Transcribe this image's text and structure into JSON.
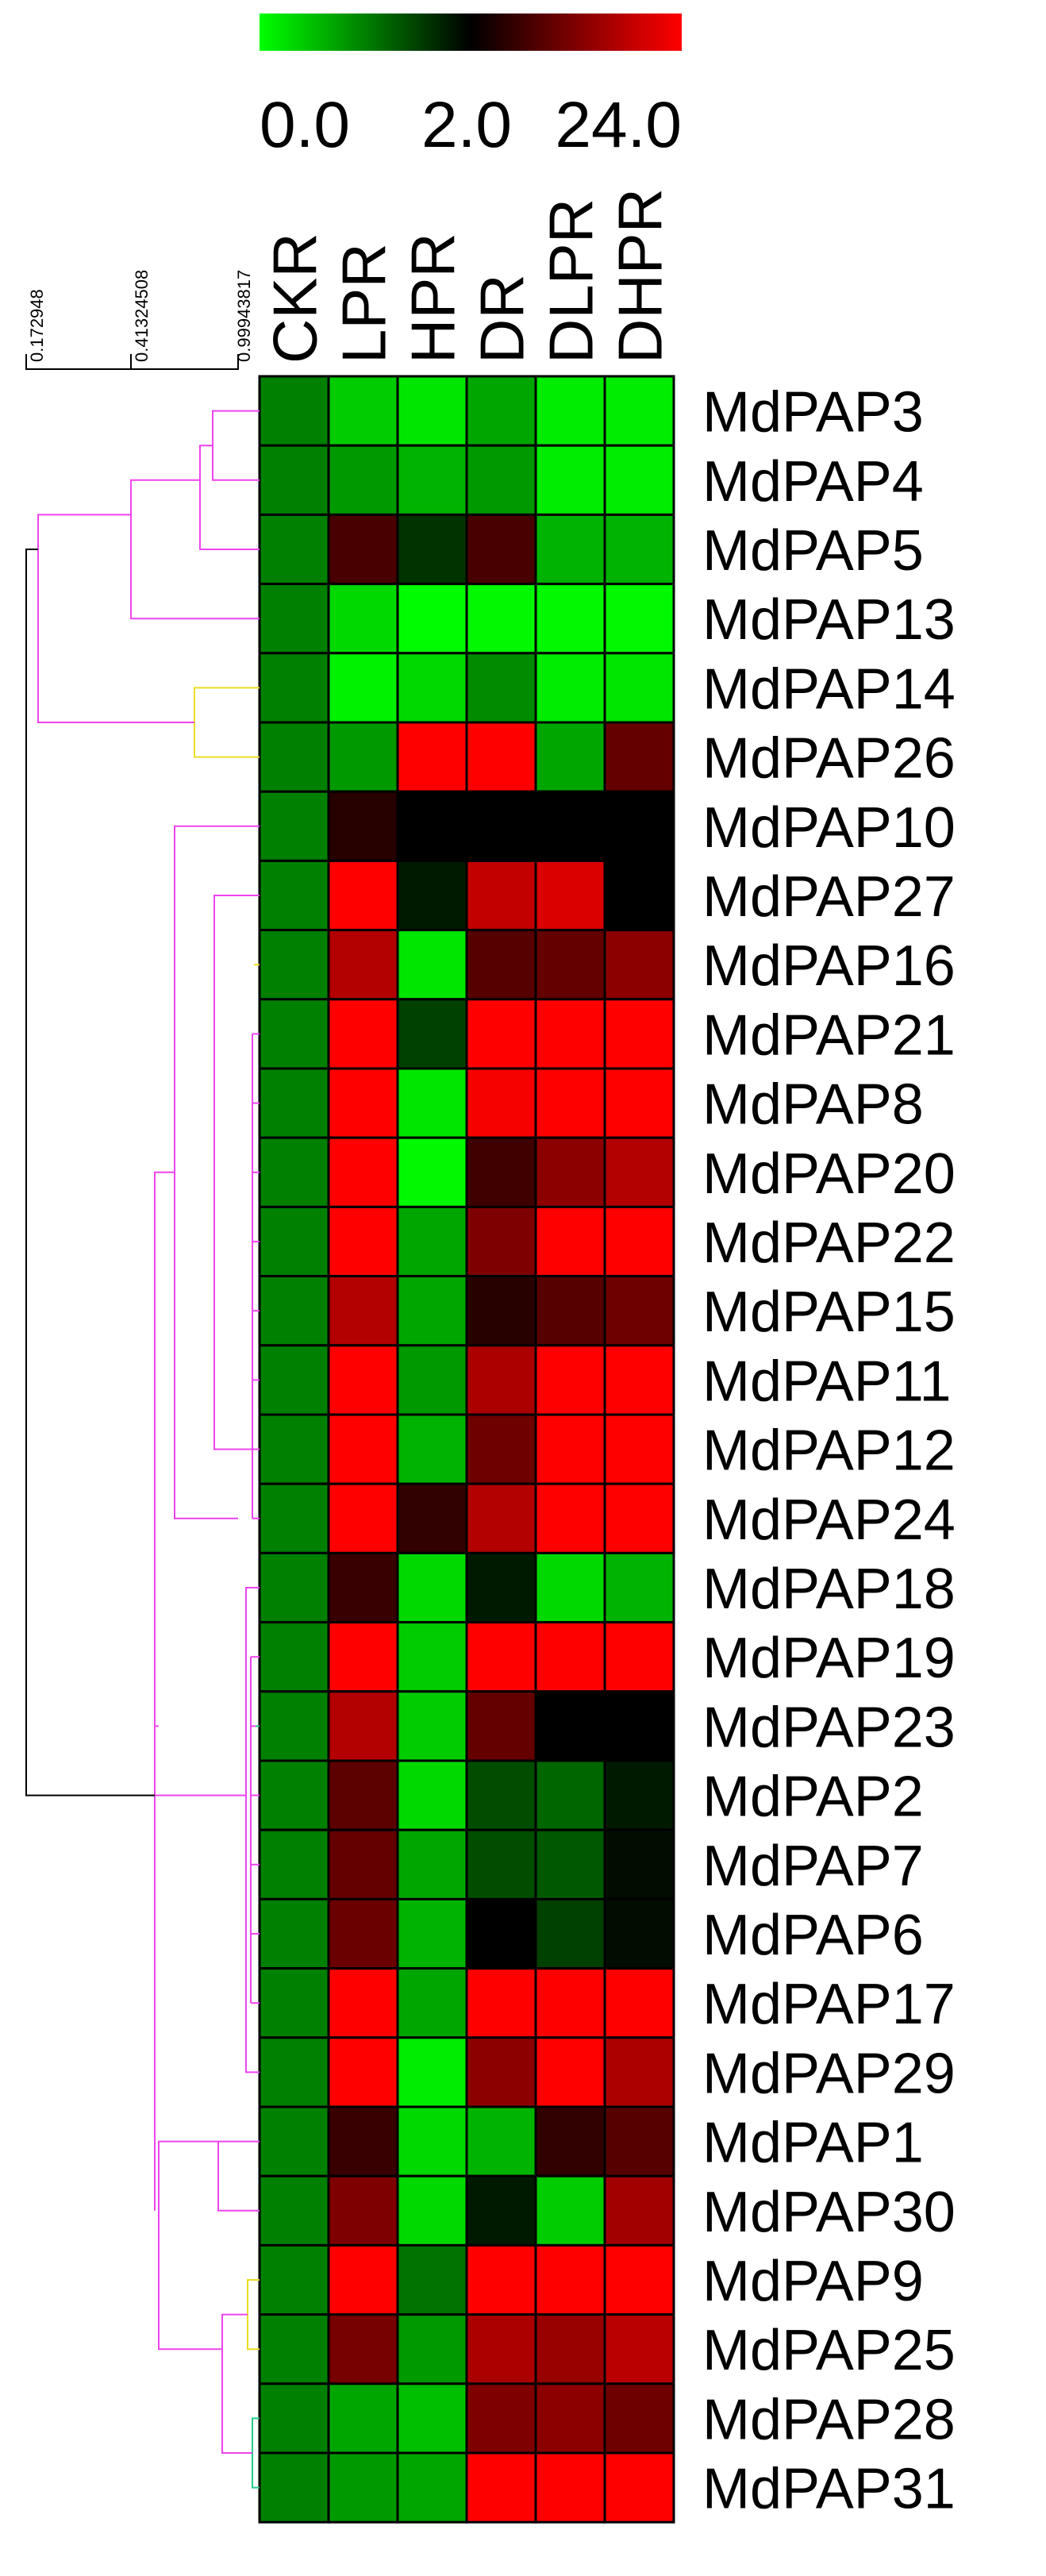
{
  "chart_data": {
    "type": "heatmap",
    "columns": [
      "CKR",
      "LPR",
      "HPR",
      "DR",
      "DLPR",
      "DHPR"
    ],
    "rows": [
      "MdPAP3",
      "MdPAP4",
      "MdPAP5",
      "MdPAP13",
      "MdPAP14",
      "MdPAP26",
      "MdPAP10",
      "MdPAP27",
      "MdPAP16",
      "MdPAP21",
      "MdPAP8",
      "MdPAP20",
      "MdPAP22",
      "MdPAP15",
      "MdPAP11",
      "MdPAP12",
      "MdPAP24",
      "MdPAP18",
      "MdPAP19",
      "MdPAP23",
      "MdPAP2",
      "MdPAP7",
      "MdPAP6",
      "MdPAP17",
      "MdPAP29",
      "MdPAP1",
      "MdPAP30",
      "MdPAP9",
      "MdPAP25",
      "MdPAP28",
      "MdPAP31"
    ],
    "values": [
      [
        1.0,
        0.4,
        0.2,
        0.7,
        0.15,
        0.15
      ],
      [
        1.0,
        0.8,
        0.6,
        0.8,
        0.15,
        0.15
      ],
      [
        1.0,
        2.6,
        1.6,
        2.6,
        0.6,
        0.6
      ],
      [
        1.0,
        0.3,
        0.02,
        0.05,
        0.05,
        0.05
      ],
      [
        1.0,
        0.1,
        0.3,
        0.9,
        0.15,
        0.2
      ],
      [
        1.0,
        0.8,
        24.0,
        24.0,
        0.7,
        3.5
      ],
      [
        1.0,
        2.1,
        2.0,
        2.0,
        2.0,
        2.0
      ],
      [
        1.0,
        24.0,
        1.8,
        12.0,
        16.0,
        2.0
      ],
      [
        1.0,
        10.0,
        0.2,
        3.0,
        3.5,
        6.0
      ],
      [
        1.0,
        24.0,
        1.5,
        24.0,
        24.0,
        24.0
      ],
      [
        1.0,
        24.0,
        0.2,
        22.0,
        24.0,
        24.0
      ],
      [
        1.0,
        24.0,
        0.05,
        2.4,
        6.0,
        10.0
      ],
      [
        1.0,
        24.0,
        0.7,
        5.0,
        24.0,
        24.0
      ],
      [
        1.0,
        10.0,
        0.7,
        2.1,
        3.0,
        4.0
      ],
      [
        1.0,
        24.0,
        0.8,
        9.0,
        24.0,
        24.0
      ],
      [
        1.0,
        24.0,
        0.6,
        4.0,
        24.0,
        24.0
      ],
      [
        1.0,
        24.0,
        2.2,
        10.0,
        24.0,
        24.0
      ],
      [
        1.0,
        2.3,
        0.3,
        1.8,
        0.3,
        0.6
      ],
      [
        1.0,
        24.0,
        0.4,
        24.0,
        24.0,
        24.0
      ],
      [
        1.0,
        10.0,
        0.4,
        3.5,
        2.0,
        2.0
      ],
      [
        1.0,
        3.2,
        0.3,
        1.4,
        1.2,
        1.8
      ],
      [
        1.0,
        3.5,
        0.7,
        1.4,
        1.3,
        1.9
      ],
      [
        1.0,
        3.8,
        0.6,
        2.0,
        1.5,
        1.9
      ],
      [
        1.0,
        24.0,
        0.7,
        24.0,
        24.0,
        24.0
      ],
      [
        1.0,
        24.0,
        0.15,
        6.0,
        24.0,
        9.0
      ],
      [
        1.0,
        2.3,
        0.3,
        0.6,
        2.2,
        3.0
      ],
      [
        1.0,
        5.0,
        0.3,
        1.8,
        0.4,
        8.0
      ],
      [
        1.0,
        24.0,
        1.1,
        24.0,
        24.0,
        24.0
      ],
      [
        1.0,
        4.5,
        0.8,
        9.0,
        7.0,
        11.0
      ],
      [
        1.0,
        0.7,
        0.5,
        5.0,
        6.0,
        4.0
      ],
      [
        1.0,
        0.8,
        0.7,
        24.0,
        24.0,
        24.0
      ]
    ],
    "color_scale": {
      "min": 0.0,
      "mid": 2.0,
      "max": 24.0,
      "tick_labels": [
        "0.0",
        "2.0",
        "24.0"
      ],
      "low_color": "#00ff00",
      "mid_color": "#000000",
      "high_color": "#ff0000"
    },
    "dendrogram": {
      "axis_ticks": [
        "0.172948",
        "0.41324508",
        "0.99943817"
      ],
      "branch_colors": {
        "main": "#ee44ee",
        "root": "#000000",
        "highlight": "#eedd22",
        "leaf_pair": "#22cc88"
      }
    },
    "legend_placement": "top",
    "grid": true
  }
}
